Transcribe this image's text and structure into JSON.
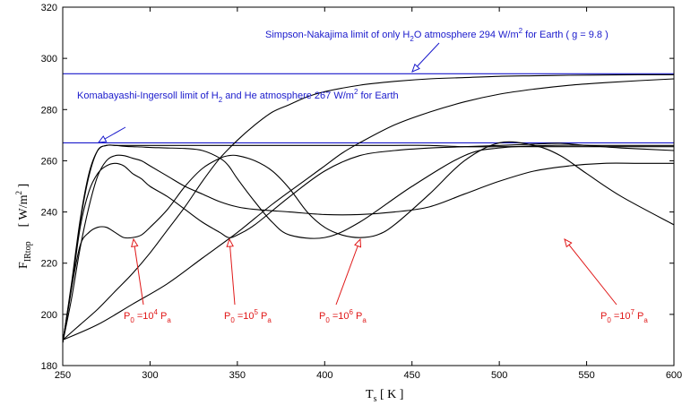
{
  "chart_data": {
    "type": "line",
    "title": "",
    "xlabel": {
      "main": "T",
      "sub": "s",
      "rest": "  [ K ]"
    },
    "ylabel": {
      "main": "F",
      "sub": "IRtop",
      "rest1": "[ W/m",
      "sup": "2",
      "rest2": " ]"
    },
    "xlim": [
      250,
      600
    ],
    "ylim": [
      180,
      320
    ],
    "xticks": [
      250,
      300,
      350,
      400,
      450,
      500,
      550,
      600
    ],
    "yticks": [
      180,
      200,
      220,
      240,
      260,
      280,
      300,
      320
    ],
    "reference_lines": [
      {
        "y": 294,
        "color": "#1a1acc"
      },
      {
        "y": 267,
        "color": "#1a1acc"
      }
    ],
    "series": [
      {
        "color": "#000000",
        "x": [
          250,
          255,
          260,
          265,
          270,
          275,
          280,
          285,
          290,
          295,
          300,
          310,
          320,
          330,
          340,
          350,
          360,
          380,
          400,
          420,
          440,
          460,
          480,
          500,
          520,
          540,
          560,
          580,
          600
        ],
        "y": [
          189,
          211,
          236,
          254,
          264,
          266,
          266,
          266,
          266,
          266,
          266,
          266,
          266,
          266,
          266,
          266,
          266,
          266,
          266,
          266,
          266,
          266,
          265.5,
          265.5,
          265.5,
          265.5,
          265.5,
          265.5,
          265.5
        ]
      },
      {
        "color": "#000000",
        "x": [
          250,
          255,
          260,
          265,
          270,
          275,
          280,
          285,
          290,
          295,
          300,
          305,
          310,
          320,
          330,
          340,
          345,
          350,
          360,
          370,
          380,
          400,
          420,
          450,
          480,
          500,
          530,
          560,
          600
        ],
        "y": [
          189,
          212,
          237,
          255,
          264,
          266,
          266,
          265.7,
          265.5,
          265.4,
          265.2,
          265.1,
          265,
          264.8,
          264,
          261,
          258,
          253,
          244,
          236,
          231,
          230,
          236,
          250,
          262,
          265,
          266,
          266,
          266
        ]
      },
      {
        "color": "#000000",
        "x": [
          250,
          255,
          260,
          265,
          270,
          275,
          280,
          285,
          290,
          295,
          300,
          310,
          320,
          330,
          340,
          345,
          350,
          360,
          380,
          400,
          420,
          440,
          460,
          480,
          500,
          520,
          535,
          550,
          570,
          600
        ],
        "y": [
          189,
          210,
          234,
          248,
          255,
          258,
          259,
          258,
          255,
          253,
          250,
          246,
          241,
          236,
          232,
          230,
          231,
          235,
          246,
          256,
          262,
          264,
          265,
          265.5,
          266,
          266.5,
          266.8,
          266,
          265,
          264
        ]
      },
      {
        "color": "#000000",
        "x": [
          250,
          255,
          260,
          265,
          270,
          275,
          280,
          285,
          290,
          295,
          300,
          310,
          320,
          330,
          340,
          345,
          350,
          360,
          370,
          380,
          390,
          400,
          410,
          420,
          430,
          440,
          460,
          480,
          500,
          520,
          535,
          550,
          570,
          600
        ],
        "y": [
          189,
          210,
          227,
          232,
          234,
          234,
          232,
          230,
          230,
          231,
          234,
          241,
          250,
          257,
          261,
          262,
          262,
          260,
          256,
          249,
          240,
          234,
          231,
          230,
          231,
          235,
          247,
          260,
          267,
          266,
          262,
          255,
          246,
          235
        ]
      },
      {
        "color": "#000000",
        "x": [
          250,
          255,
          260,
          265,
          270,
          275,
          280,
          285,
          290,
          295,
          300,
          310,
          320,
          330,
          340,
          350,
          360,
          380,
          400,
          420,
          440,
          460,
          480,
          500,
          520,
          540,
          560,
          580,
          600
        ],
        "y": [
          189,
          206,
          226,
          242,
          254,
          260,
          262,
          262,
          261,
          260,
          258,
          254,
          250,
          247,
          244,
          242,
          241,
          240,
          239,
          239,
          240,
          242,
          247,
          252,
          256,
          258,
          259,
          259,
          259
        ]
      },
      {
        "color": "#000000",
        "x": [
          250,
          260,
          270,
          280,
          290,
          300,
          310,
          320,
          330,
          340,
          350,
          360,
          370,
          380,
          390,
          400,
          420,
          440,
          460,
          480,
          500,
          520,
          540,
          560,
          580,
          600
        ],
        "y": [
          190,
          196,
          202,
          209,
          216,
          224,
          233,
          242,
          252,
          261,
          268,
          274,
          279,
          282,
          285,
          287,
          289.5,
          291,
          292,
          292.5,
          293,
          293.2,
          293.4,
          293.5,
          293.6,
          293.6
        ]
      },
      {
        "color": "#000000",
        "x": [
          250,
          270,
          290,
          310,
          330,
          350,
          370,
          390,
          400,
          410,
          420,
          440,
          460,
          480,
          500,
          520,
          540,
          560,
          580,
          600
        ],
        "y": [
          190,
          196,
          204,
          212,
          222,
          232,
          243,
          253,
          258,
          263,
          267,
          274,
          279,
          283,
          286,
          288,
          289.5,
          290.5,
          291.3,
          292
        ]
      }
    ],
    "annotations": {
      "simpson": {
        "prefix": "Simpson-Nakajima limit of only H",
        "sub": "2",
        "suffix1": "O atmosphere 294 W/m",
        "sup": "2",
        "suffix2": " for Earth ( g = 9.8 )"
      },
      "koma": {
        "prefix": "Komabayashi-Ingersoll limit of H",
        "sub": "2",
        "suffix1": " and He atmosphere 267 W/m",
        "sup": "2",
        "suffix2": " for Earth"
      },
      "pressures": [
        {
          "base": "P",
          "sub0": "0",
          "mid": " =10",
          "exp": "4",
          "tail": " P",
          "subA": "a"
        },
        {
          "base": "P",
          "sub0": "0",
          "mid": " =10",
          "exp": "5",
          "tail": " P",
          "subA": "a"
        },
        {
          "base": "P",
          "sub0": "0",
          "mid": " =10",
          "exp": "6",
          "tail": " P",
          "subA": "a"
        },
        {
          "base": "P",
          "sub0": "0",
          "mid": " =10",
          "exp": "7",
          "tail": " P",
          "subA": "a"
        }
      ]
    }
  }
}
